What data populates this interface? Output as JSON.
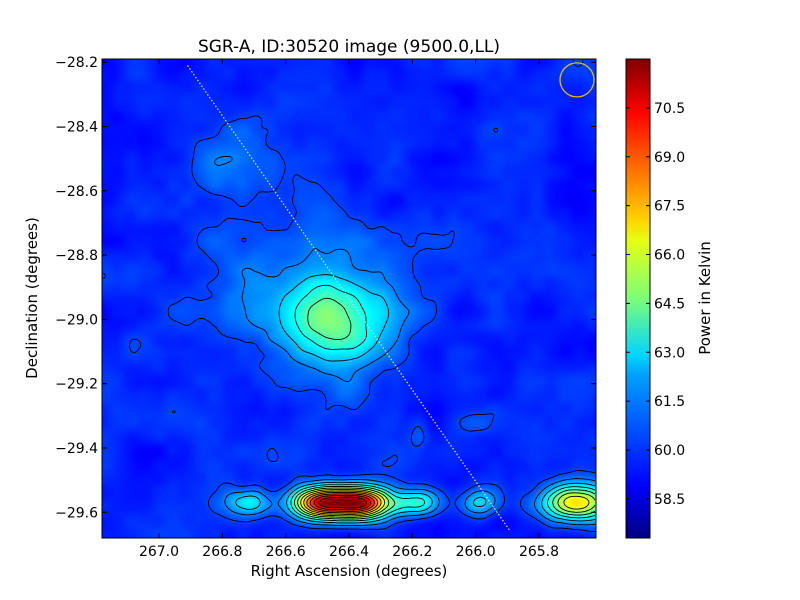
{
  "chart_data": {
    "type": "heatmap",
    "title": "SGR-A, ID:30520 image (9500.0,LL)",
    "xlabel": "Right Ascension (degrees)",
    "ylabel": "Declination (degrees)",
    "colorbar_label": "Power in Kelvin",
    "colormap": "jet",
    "xlim": [
      267.18,
      265.62
    ],
    "ylim": [
      -29.68,
      -28.19
    ],
    "x_ticks": [
      267.0,
      266.8,
      266.6,
      266.4,
      266.2,
      266.0,
      265.8
    ],
    "x_tick_labels": [
      "267.0",
      "266.8",
      "266.6",
      "266.4",
      "266.2",
      "266.0",
      "265.8"
    ],
    "y_ticks": [
      -28.2,
      -28.4,
      -28.6,
      -28.8,
      -29.0,
      -29.2,
      -29.4,
      -29.6
    ],
    "y_tick_labels": [
      "−28.2",
      "−28.4",
      "−28.6",
      "−28.8",
      "−29.0",
      "−29.2",
      "−29.4",
      "−29.6"
    ],
    "colorbar_range": [
      57.3,
      72.0
    ],
    "colorbar_ticks": [
      58.5,
      60.0,
      61.5,
      63.0,
      64.5,
      66.0,
      67.5,
      69.0,
      70.5
    ],
    "colorbar_tick_labels": [
      "58.5",
      "60.0",
      "61.5",
      "63.0",
      "64.5",
      "66.0",
      "67.5",
      "69.0",
      "70.5"
    ],
    "background_level": 59.6,
    "sources": [
      {
        "ra": 266.44,
        "dec": -29.0,
        "peak": 63.8,
        "sigma_ra": 0.12,
        "sigma_dec": 0.1
      },
      {
        "ra": 266.6,
        "dec": -28.9,
        "peak": 60.9,
        "sigma_ra": 0.22,
        "sigma_dec": 0.18
      },
      {
        "ra": 266.78,
        "dec": -28.52,
        "peak": 60.6,
        "sigma_ra": 0.09,
        "sigma_dec": 0.1
      },
      {
        "ra": 266.72,
        "dec": -29.57,
        "peak": 63.0,
        "sigma_ra": 0.05,
        "sigma_dec": 0.03
      },
      {
        "ra": 266.5,
        "dec": -29.57,
        "peak": 68.8,
        "sigma_ra": 0.06,
        "sigma_dec": 0.035
      },
      {
        "ra": 266.37,
        "dec": -29.57,
        "peak": 71.8,
        "sigma_ra": 0.07,
        "sigma_dec": 0.035
      },
      {
        "ra": 266.18,
        "dec": -29.57,
        "peak": 63.4,
        "sigma_ra": 0.05,
        "sigma_dec": 0.03
      },
      {
        "ra": 265.99,
        "dec": -29.57,
        "peak": 62.4,
        "sigma_ra": 0.04,
        "sigma_dec": 0.03
      },
      {
        "ra": 265.68,
        "dec": -29.57,
        "peak": 66.9,
        "sigma_ra": 0.08,
        "sigma_dec": 0.04
      },
      {
        "ra": 266.01,
        "dec": -29.32,
        "peak": 60.4,
        "sigma_ra": 0.05,
        "sigma_dec": 0.03
      },
      {
        "ra": 266.4,
        "dec": -29.23,
        "peak": 60.3,
        "sigma_ra": 0.04,
        "sigma_dec": 0.04
      },
      {
        "ra": 266.18,
        "dec": -29.35,
        "peak": 60.4,
        "sigma_ra": 0.02,
        "sigma_dec": 0.04
      }
    ],
    "dotted_track": {
      "from": [
        266.91,
        -28.21
      ],
      "to": [
        265.89,
        -29.66
      ],
      "color": "#e6e6e6"
    },
    "beam_circle": {
      "ra": 265.68,
      "dec": -28.255,
      "color": "#e0c000"
    }
  }
}
